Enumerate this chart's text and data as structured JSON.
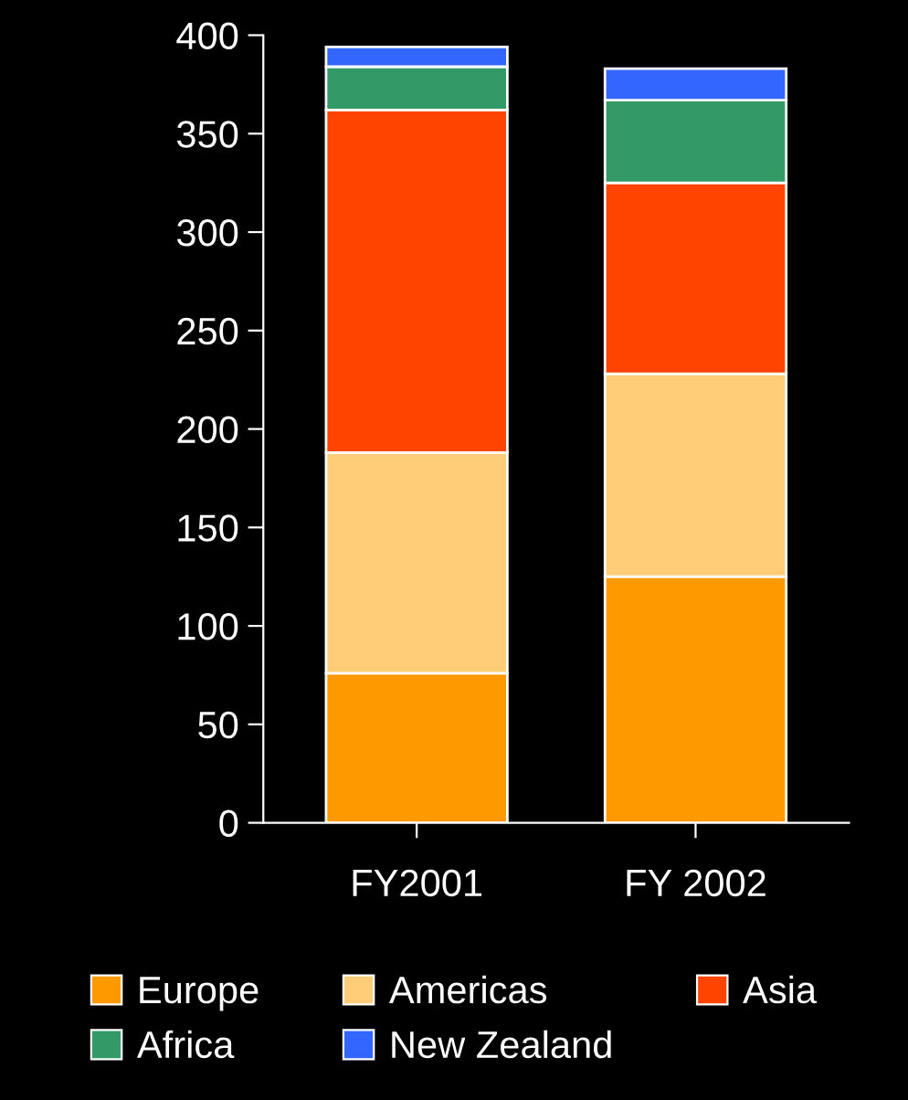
{
  "chart_data": {
    "type": "bar",
    "stacked": true,
    "categories": [
      "FY2001",
      "FY 2002"
    ],
    "series": [
      {
        "name": "Europe",
        "color": "#ff9900",
        "values": [
          76,
          125
        ]
      },
      {
        "name": "Americas",
        "color": "#ffcc77",
        "values": [
          112,
          103
        ]
      },
      {
        "name": "Asia",
        "color": "#ff4400",
        "values": [
          174,
          97
        ]
      },
      {
        "name": "Africa",
        "color": "#339966",
        "values": [
          22,
          42
        ]
      },
      {
        "name": "New Zealand",
        "color": "#3366ff",
        "values": [
          10,
          16
        ]
      }
    ],
    "ylim": [
      0,
      400
    ],
    "yticks": [
      0,
      50,
      100,
      150,
      200,
      250,
      300,
      350,
      400
    ],
    "grid": false,
    "legend": "bottom"
  }
}
